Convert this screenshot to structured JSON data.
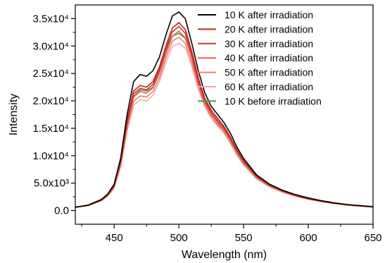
{
  "chart_data": {
    "type": "line",
    "title": "",
    "xlabel": "Wavelength (nm)",
    "ylabel": "Intensity",
    "xlim": [
      420,
      650
    ],
    "ylim": [
      -2500,
      37500
    ],
    "x_ticks": [
      {
        "value": 450,
        "label": "450"
      },
      {
        "value": 500,
        "label": "500"
      },
      {
        "value": 550,
        "label": "550"
      },
      {
        "value": 600,
        "label": "600"
      },
      {
        "value": 650,
        "label": "650"
      }
    ],
    "y_ticks": [
      {
        "value": 0,
        "label": "0.0"
      },
      {
        "value": 5000,
        "label": "5.0x10³"
      },
      {
        "value": 10000,
        "label": "1.0x10⁴"
      },
      {
        "value": 15000,
        "label": "1.5x10⁴"
      },
      {
        "value": 20000,
        "label": "2.0x10⁴"
      },
      {
        "value": 25000,
        "label": "2.5x10⁴"
      },
      {
        "value": 30000,
        "label": "3.0x10⁴"
      },
      {
        "value": 35000,
        "label": "3.5x10⁴"
      }
    ],
    "grid": false,
    "legend_position": "top-right",
    "x": [
      420,
      430,
      440,
      445,
      450,
      455,
      460,
      465,
      470,
      475,
      480,
      485,
      490,
      495,
      500,
      505,
      510,
      515,
      520,
      525,
      530,
      535,
      540,
      545,
      550,
      560,
      570,
      580,
      590,
      600,
      610,
      620,
      630,
      640,
      650
    ],
    "series": [
      {
        "name": "10 K after irradiation",
        "color": "#000000",
        "values": [
          600,
          1000,
          2000,
          3000,
          4800,
          9500,
          17500,
          23500,
          24800,
          24500,
          25500,
          28000,
          32000,
          35500,
          36200,
          35000,
          30500,
          25500,
          21500,
          19000,
          17500,
          16000,
          14000,
          11500,
          9500,
          6500,
          4800,
          3700,
          2900,
          2300,
          1800,
          1400,
          1100,
          900,
          700
        ]
      },
      {
        "name": "20 K after irradiation",
        "color": "#c81e1e",
        "values": [
          600,
          950,
          1900,
          2900,
          4600,
          9000,
          16500,
          21800,
          22800,
          22500,
          23500,
          26200,
          30000,
          33300,
          34300,
          33000,
          29000,
          24200,
          20500,
          18300,
          16800,
          15300,
          13300,
          11000,
          9100,
          6300,
          4700,
          3600,
          2800,
          2200,
          1700,
          1350,
          1050,
          850,
          680
        ]
      },
      {
        "name": "30 K after irradiation",
        "color": "#d93030",
        "values": [
          600,
          950,
          1900,
          2850,
          4500,
          8800,
          16200,
          21300,
          22300,
          22000,
          23000,
          25700,
          29400,
          32600,
          33600,
          32300,
          28400,
          23700,
          20100,
          17900,
          16400,
          15000,
          13000,
          10800,
          8900,
          6200,
          4600,
          3550,
          2750,
          2150,
          1700,
          1330,
          1030,
          840,
          670
        ]
      },
      {
        "name": "40 K after irradiation",
        "color": "#e8604a",
        "values": [
          600,
          930,
          1850,
          2800,
          4400,
          8500,
          15600,
          20700,
          21700,
          21400,
          22400,
          25000,
          28600,
          31800,
          32700,
          31500,
          27800,
          23300,
          19700,
          17600,
          16100,
          14700,
          12800,
          10600,
          8800,
          6100,
          4550,
          3500,
          2700,
          2120,
          1680,
          1310,
          1020,
          830,
          660
        ]
      },
      {
        "name": "50 K after irradiation",
        "color": "#f07c6e",
        "values": [
          600,
          920,
          1800,
          2750,
          4300,
          8200,
          15000,
          19900,
          20900,
          20700,
          21700,
          24200,
          27800,
          30900,
          31600,
          30500,
          27000,
          22700,
          19300,
          17200,
          15800,
          14400,
          12500,
          10400,
          8600,
          6000,
          4480,
          3450,
          2680,
          2100,
          1660,
          1300,
          1010,
          820,
          650
        ]
      },
      {
        "name": "60 K after irradiation",
        "color": "#f5aaa8",
        "values": [
          600,
          900,
          1780,
          2700,
          4200,
          8000,
          14500,
          19200,
          20200,
          20000,
          21000,
          23500,
          27000,
          29900,
          30500,
          29600,
          26300,
          22100,
          18900,
          16800,
          15400,
          14100,
          12300,
          10200,
          8500,
          5900,
          4420,
          3400,
          2650,
          2080,
          1650,
          1290,
          1000,
          810,
          640
        ]
      },
      {
        "name": "10 K before irradiation",
        "color": "#3fa535",
        "values": [
          600,
          900,
          1750,
          2650,
          4100,
          8600,
          16000,
          20800,
          22000,
          21800,
          22500,
          25500,
          29300,
          31800,
          32300,
          31400,
          28000,
          23600,
          19700,
          17300,
          15600,
          14100,
          12200,
          10100,
          8400,
          5800,
          4350,
          3350,
          2620,
          2050,
          1630,
          1270,
          990,
          800,
          630
        ]
      }
    ]
  }
}
